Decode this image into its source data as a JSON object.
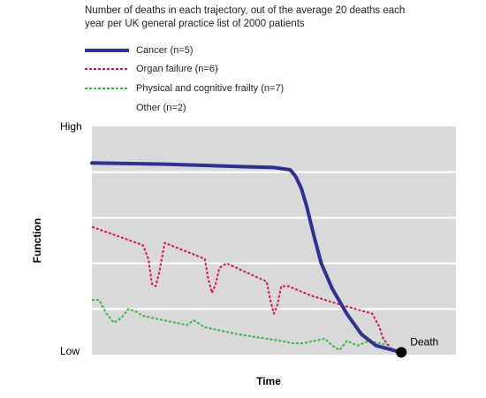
{
  "chart_data": {
    "type": "line",
    "subtitle": "Number of deaths in each trajectory, out of the average 20 deaths each year per UK general practice list of 2000 patients",
    "xlabel": "Time",
    "ylabel": "Function",
    "y_high_label": "High",
    "y_low_label": "Low",
    "end_annotation": "Death",
    "xlim": [
      0,
      1
    ],
    "ylim": [
      0,
      1
    ],
    "grid": true,
    "legend_position": "top-left",
    "series": [
      {
        "name": "Cancer (n=5)",
        "color": "#2e3192",
        "style": "solid",
        "x": [
          0.0,
          0.2,
          0.4,
          0.5,
          0.545,
          0.56,
          0.575,
          0.59,
          0.61,
          0.63,
          0.66,
          0.7,
          0.74,
          0.78,
          0.85
        ],
        "y": [
          0.84,
          0.835,
          0.825,
          0.82,
          0.81,
          0.78,
          0.73,
          0.65,
          0.52,
          0.4,
          0.29,
          0.18,
          0.09,
          0.04,
          0.01
        ]
      },
      {
        "name": "Organ failure (n=6)",
        "color": "#d4145a",
        "style": "dashed",
        "x": [
          0.0,
          0.07,
          0.14,
          0.155,
          0.165,
          0.175,
          0.185,
          0.2,
          0.31,
          0.32,
          0.33,
          0.34,
          0.35,
          0.37,
          0.48,
          0.49,
          0.5,
          0.51,
          0.52,
          0.54,
          0.6,
          0.68,
          0.77,
          0.79,
          0.8,
          0.82,
          0.83
        ],
        "y": [
          0.56,
          0.52,
          0.48,
          0.42,
          0.31,
          0.3,
          0.36,
          0.49,
          0.42,
          0.33,
          0.27,
          0.31,
          0.38,
          0.4,
          0.32,
          0.24,
          0.18,
          0.22,
          0.3,
          0.3,
          0.26,
          0.22,
          0.18,
          0.12,
          0.07,
          0.03,
          0.02
        ]
      },
      {
        "name": "Physical and cognitive frailty (n=7)",
        "color": "#39b54a",
        "style": "dashed",
        "x": [
          0.0,
          0.02,
          0.04,
          0.06,
          0.08,
          0.1,
          0.12,
          0.14,
          0.17,
          0.2,
          0.23,
          0.26,
          0.28,
          0.31,
          0.34,
          0.37,
          0.4,
          0.44,
          0.48,
          0.52,
          0.55,
          0.58,
          0.61,
          0.64,
          0.66,
          0.68,
          0.7,
          0.73,
          0.76,
          0.79,
          0.82
        ],
        "y": [
          0.24,
          0.24,
          0.18,
          0.14,
          0.16,
          0.2,
          0.19,
          0.17,
          0.16,
          0.15,
          0.14,
          0.13,
          0.15,
          0.12,
          0.11,
          0.1,
          0.09,
          0.08,
          0.07,
          0.06,
          0.05,
          0.05,
          0.06,
          0.07,
          0.04,
          0.02,
          0.06,
          0.04,
          0.06,
          0.05,
          0.04
        ]
      },
      {
        "name": "Other (n=2)",
        "color": "#ffffff",
        "style": "none",
        "x": [],
        "y": []
      }
    ]
  }
}
